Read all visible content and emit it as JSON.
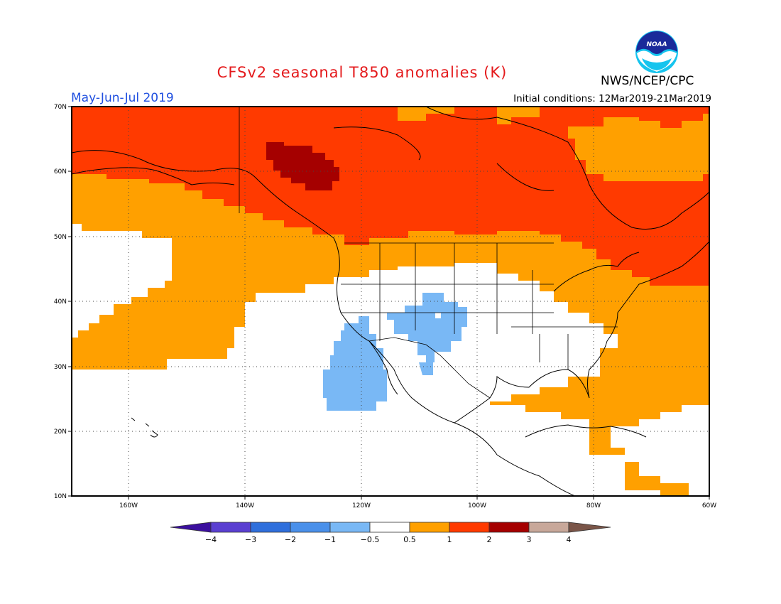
{
  "title": "CFSv2 seasonal T850 anomalies (K)",
  "organization": "NWS/NCEP/CPC",
  "logo_text": "NOAA",
  "season": "May-Jun-Jul 2019",
  "initial_conditions": "Initial conditions: 12Mar2019-21Mar2019",
  "latitude_labels": [
    "70N",
    "60N",
    "50N",
    "40N",
    "30N",
    "20N",
    "10N"
  ],
  "longitude_labels": [
    "160W",
    "140W",
    "120W",
    "100W",
    "80W",
    "60W"
  ],
  "colorbar": {
    "labels": [
      "−4",
      "−3",
      "−2",
      "−1",
      "−0.5",
      "0.5",
      "1",
      "2",
      "3",
      "4"
    ],
    "colors": [
      "#3b0f9e",
      "#5a3fd1",
      "#2f6fdc",
      "#4a90ea",
      "#79b8f5",
      "#ffffff",
      "#ffa000",
      "#ff3a00",
      "#a50000",
      "#c8a89a",
      "#7a5548"
    ]
  },
  "regions": [
    {
      "name": "warm-anomaly-0.5-to-1",
      "color": "#ffa000"
    },
    {
      "name": "warm-anomaly-1-to-2",
      "color": "#ff3a00"
    },
    {
      "name": "warm-anomaly-2-to-3",
      "color": "#a50000"
    },
    {
      "name": "cool-anomaly-minus1-to-minus0.5",
      "color": "#79b8f5"
    }
  ]
}
